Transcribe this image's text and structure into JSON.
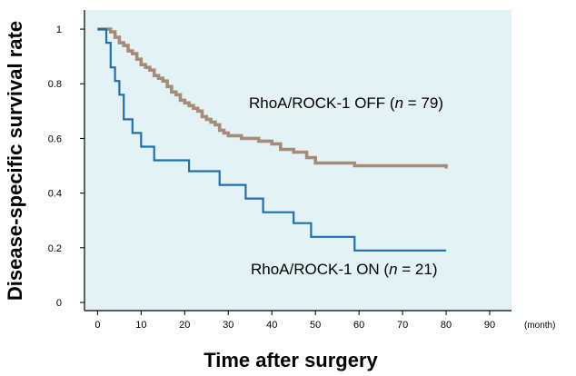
{
  "chart_data": {
    "type": "line",
    "step": true,
    "xlabel": "Time after surgery",
    "ylabel": "Disease-specific survival rate",
    "x_unit": "(month)",
    "xlim": [
      -3,
      95
    ],
    "ylim": [
      -0.03,
      1.07
    ],
    "xticks": [
      0,
      10,
      20,
      30,
      40,
      50,
      60,
      70,
      80,
      90
    ],
    "yticks": [
      0,
      0.2,
      0.4,
      0.6,
      0.8,
      1
    ],
    "ytick_labels": [
      "0",
      "0.2",
      "0.4",
      "0.6",
      "0.8",
      "1"
    ],
    "background": "#e3f3f5",
    "series": [
      {
        "label_pre": "RhoA/ROCK-1 OFF (",
        "label_n": "n",
        "label_post": " = 79)",
        "color": "#a88a78",
        "x": [
          0,
          3,
          4,
          5,
          6,
          7,
          8,
          9,
          10,
          11,
          12,
          13,
          14,
          15,
          16,
          17,
          18,
          19,
          20,
          21,
          22,
          23,
          24,
          25,
          26,
          27,
          28,
          29,
          30,
          33,
          37,
          40,
          42,
          45,
          48,
          50,
          59,
          80
        ],
        "y": [
          1.0,
          0.99,
          0.97,
          0.95,
          0.94,
          0.92,
          0.91,
          0.89,
          0.87,
          0.86,
          0.85,
          0.83,
          0.82,
          0.81,
          0.79,
          0.77,
          0.76,
          0.74,
          0.73,
          0.72,
          0.71,
          0.7,
          0.68,
          0.67,
          0.66,
          0.65,
          0.63,
          0.62,
          0.61,
          0.6,
          0.59,
          0.58,
          0.56,
          0.55,
          0.53,
          0.51,
          0.5,
          0.49
        ]
      },
      {
        "label_pre": "RhoA/ROCK-1 ON (",
        "label_n": "n",
        "label_post": " = 21)",
        "color": "#1f6fb0",
        "x": [
          0,
          2,
          3,
          4,
          5,
          6,
          8,
          10,
          13,
          21,
          28,
          34,
          38,
          45,
          49,
          59,
          80
        ],
        "y": [
          1.0,
          0.95,
          0.86,
          0.81,
          0.76,
          0.67,
          0.62,
          0.57,
          0.52,
          0.48,
          0.43,
          0.38,
          0.33,
          0.29,
          0.24,
          0.19,
          0.19
        ]
      }
    ]
  }
}
